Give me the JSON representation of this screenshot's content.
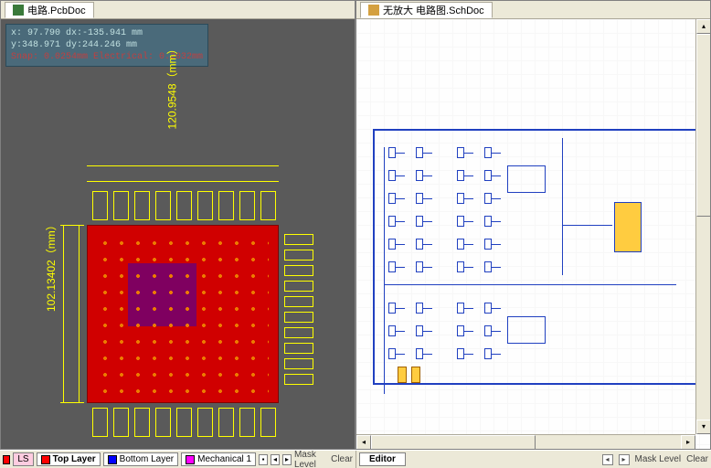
{
  "left": {
    "tab_label": "电路.PcbDoc",
    "hud": {
      "line1": "x: 97.790    dx:-135.941  mm",
      "line2": "y:348.971   dy:244.246   mm",
      "line3": "Snap: 0.0254mm Electrical: 0.2032mm"
    },
    "dim_v": "102.13402（mm）",
    "dim_h": "120.9548（mm）",
    "colors": {
      "canvas_bg": "#5a5a5a",
      "board": "#d00000",
      "dim": "#ffff00",
      "hud_bg": "#4a6a7a",
      "hud_fg": "#c0e0e0",
      "hud_snap": "#c04040"
    }
  },
  "right": {
    "tab_label": "无放大 电路图.SchDoc",
    "colors": {
      "canvas_bg": "#fefefe",
      "wire": "#2040c0",
      "chip": "#ffcc40",
      "border": "#2040c0"
    }
  },
  "footer": {
    "ls": "LS",
    "layers": [
      {
        "label": "Top Layer",
        "color": "#ff0000"
      },
      {
        "label": "Bottom Layer",
        "color": "#0000ff"
      },
      {
        "label": "Mechanical 1",
        "color": "#ff00ff"
      }
    ],
    "mask_level": "Mask Level",
    "clear": "Clear",
    "editor": "Editor"
  }
}
